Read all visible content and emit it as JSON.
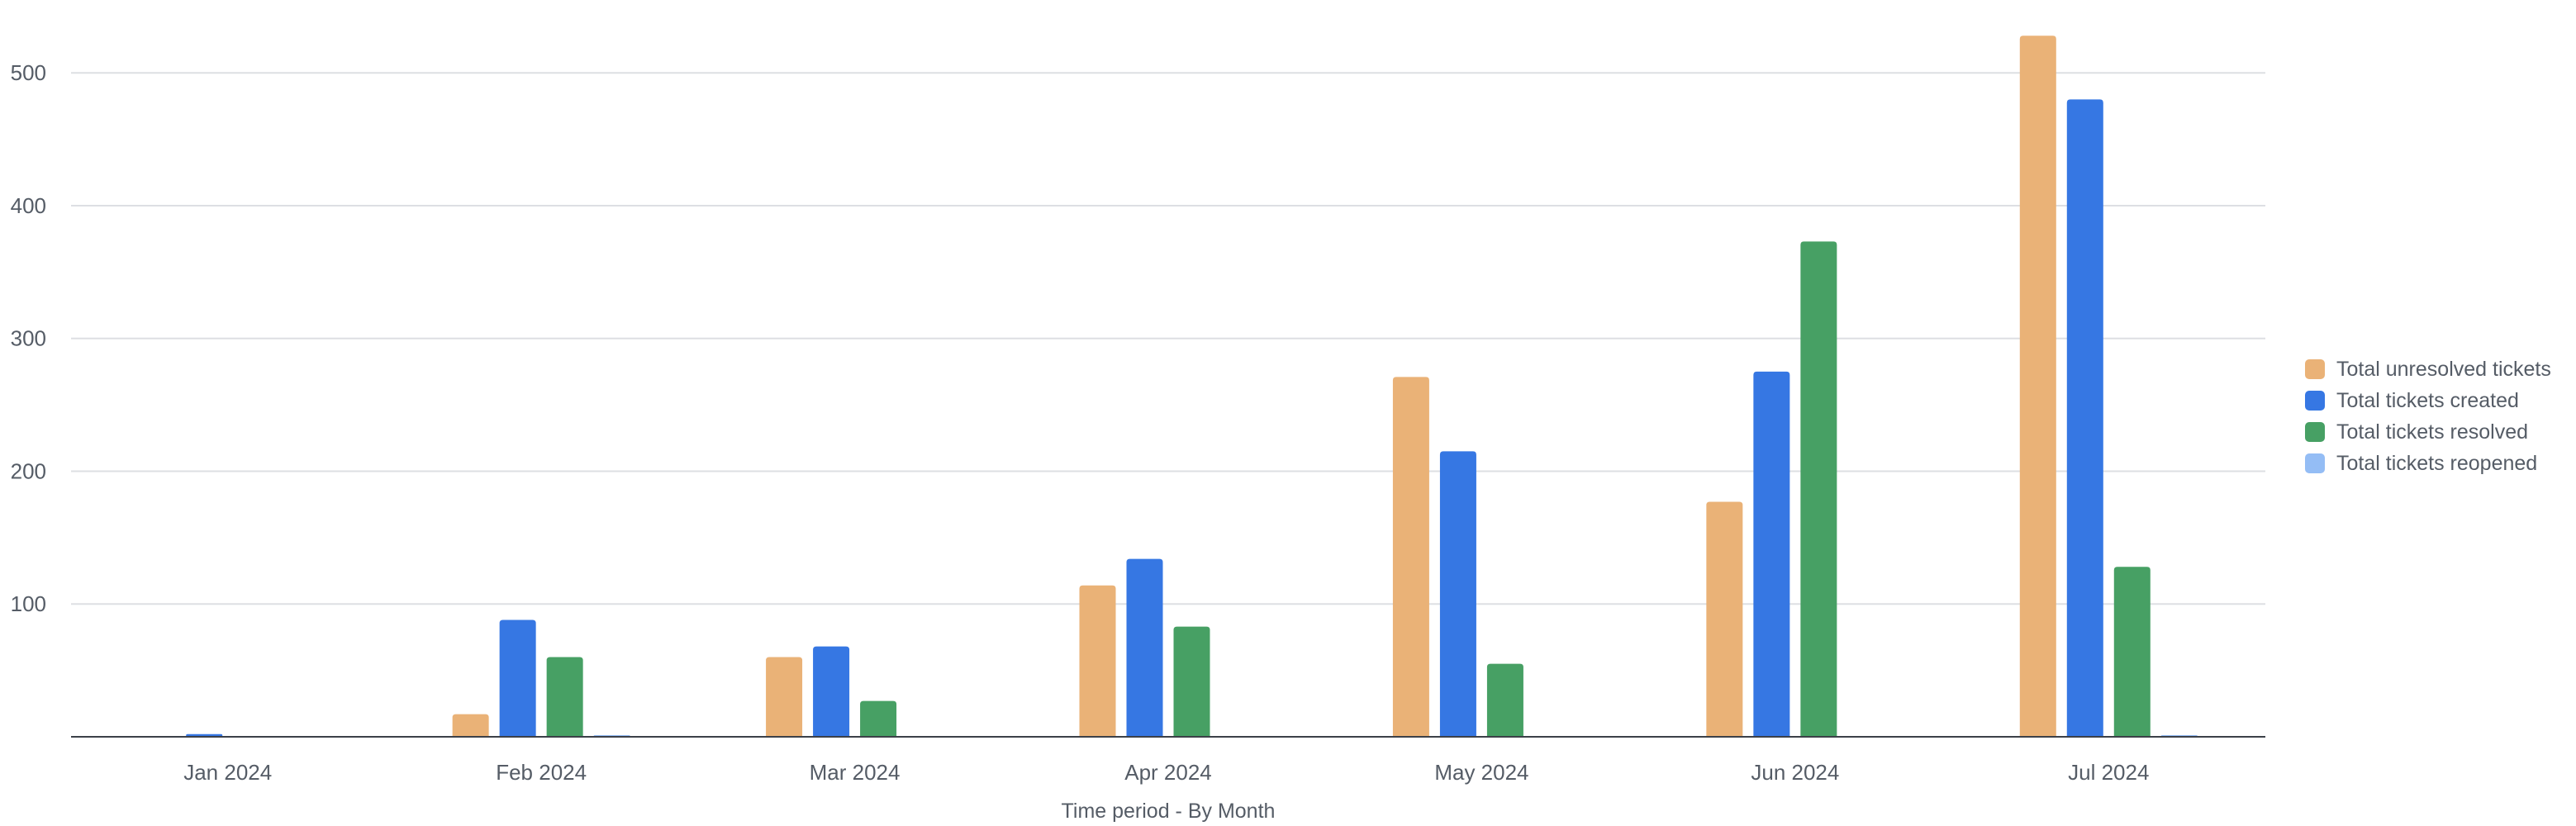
{
  "colors": {
    "grid": "#dddfe3",
    "axis": "#3c4048",
    "background": "#ffffff"
  },
  "chart_data": {
    "type": "bar",
    "title": "",
    "xlabel": "Time period - By Month",
    "ylabel": "",
    "ylim": [
      0,
      530
    ],
    "yticks": [
      100,
      200,
      300,
      400,
      500
    ],
    "grid": true,
    "legend_position": "right",
    "categories": [
      "Jan 2024",
      "Feb 2024",
      "Mar 2024",
      "Apr 2024",
      "May 2024",
      "Jun 2024",
      "Jul 2024"
    ],
    "series": [
      {
        "name": "Total unresolved tickets",
        "color": "#eab277",
        "values": [
          0,
          17,
          60,
          114,
          271,
          177,
          528
        ]
      },
      {
        "name": "Total tickets created",
        "color": "#3677e3",
        "values": [
          2,
          88,
          68,
          134,
          215,
          275,
          480
        ]
      },
      {
        "name": "Total tickets resolved",
        "color": "#47a064",
        "values": [
          0,
          60,
          27,
          83,
          55,
          373,
          128
        ]
      },
      {
        "name": "Total tickets reopened",
        "color": "#94bdf5",
        "values": [
          0,
          1,
          0,
          0,
          0,
          0,
          1
        ]
      }
    ]
  }
}
